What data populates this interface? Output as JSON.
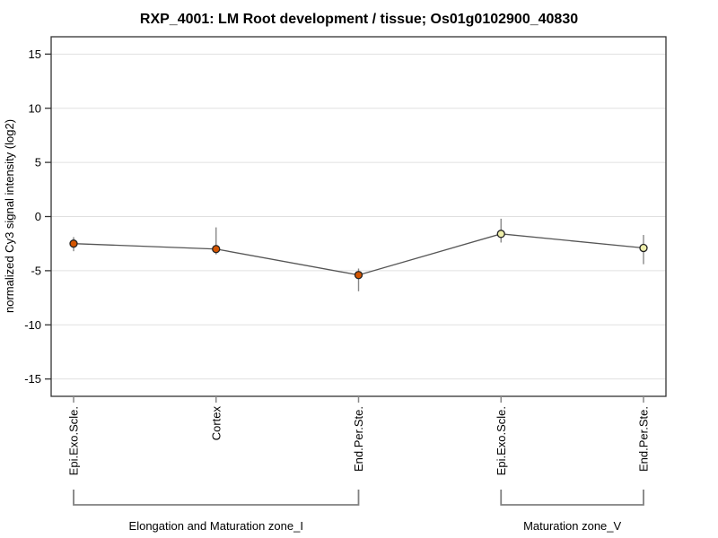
{
  "chart_data": {
    "type": "line",
    "title": "RXP_4001: LM Root development / tissue; Os01g0102900_40830",
    "ylabel": "normalized Cy3 signal intensity (log2)",
    "xlabel": "",
    "ylim": [
      -16.6,
      16.6
    ],
    "yticks": [
      15,
      10,
      5,
      0,
      -5,
      -10,
      -15
    ],
    "grid": "horizontal",
    "legend": "none",
    "categories": [
      "Epi.Exo.Scle.",
      "Cortex",
      "End.Per.Ste.",
      "Epi.Exo.Scle.",
      "End.Per.Ste."
    ],
    "groups": [
      {
        "label": "Elongation and Maturation zone_I",
        "start_index": 0,
        "end_index": 2
      },
      {
        "label": "Maturation zone_V",
        "start_index": 3,
        "end_index": 4
      }
    ],
    "series": [
      {
        "name": "Os01g0102900_40830",
        "values": [
          -2.5,
          -3.0,
          -5.4,
          -1.6,
          -2.9
        ],
        "error_high": [
          -1.9,
          -1.0,
          -4.8,
          -0.2,
          -1.7
        ],
        "error_low": [
          -3.2,
          -3.5,
          -6.9,
          -2.4,
          -4.4
        ],
        "point_fill_colors": [
          "#d45500",
          "#d45500",
          "#d45500",
          "#eeeeaa",
          "#eeeeaa"
        ]
      }
    ],
    "colors": {
      "series_line": "#555555",
      "error_bar": "#888888",
      "gridline": "#e0e0e0",
      "plot_border": "#333333",
      "marker_outline": "#222222",
      "axis_tick": "#333333",
      "x_tick": "#888888",
      "bracket": "#808080",
      "background": "#ffffff"
    }
  }
}
